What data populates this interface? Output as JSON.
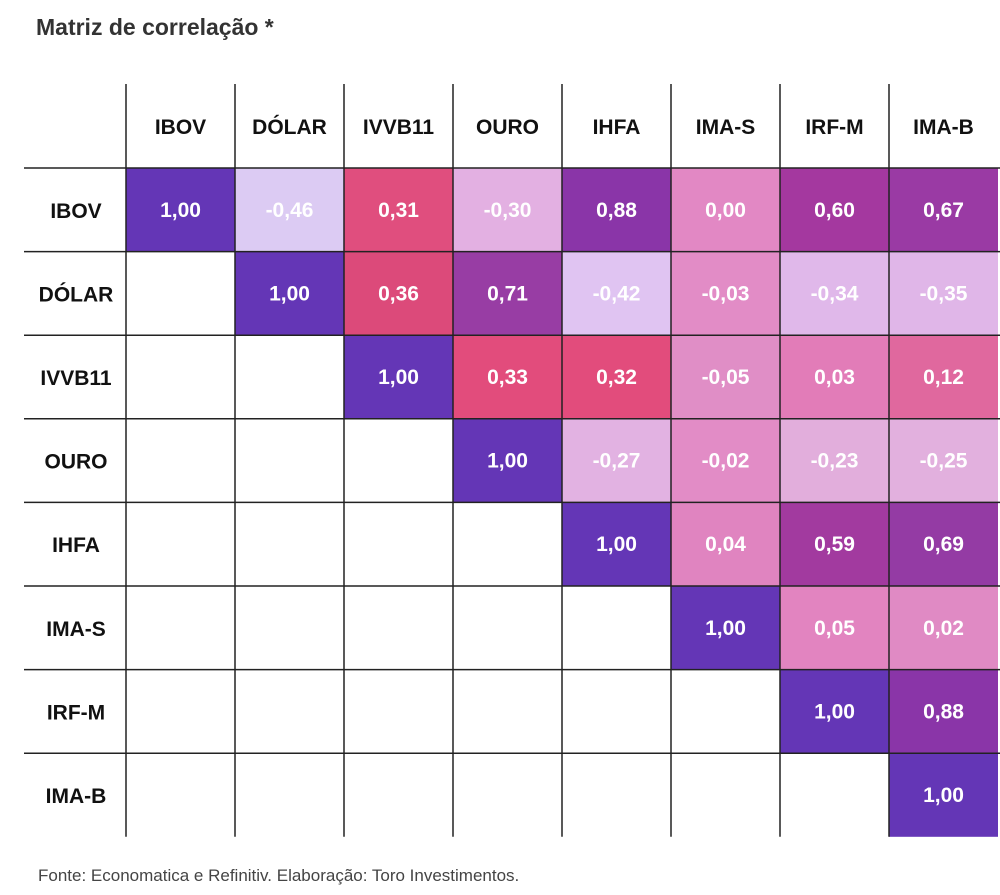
{
  "page": {
    "title": "Matriz de correlação *",
    "source": "Fonte: Economatica e Refinitiv. Elaboração: Toro Investimentos."
  },
  "colors": {
    "diagonal": "#6a37b5",
    "grid_line": "#222222",
    "text_light": "#ffffff"
  },
  "chart_data": {
    "type": "heatmap",
    "title": "Matriz de correlação *",
    "labels": [
      "IBOV",
      "DÓLAR",
      "IVVB11",
      "OURO",
      "IHFA",
      "IMA-S",
      "IRF-M",
      "IMA-B"
    ],
    "matrix_upper": [
      [
        "1,00",
        "-0,46",
        "0,31",
        "-0,30",
        "0,88",
        "0,00",
        "0,60",
        "0,67"
      ],
      [
        null,
        "1,00",
        "0,36",
        "0,71",
        "-0,42",
        "-0,03",
        "-0,34",
        "-0,35"
      ],
      [
        null,
        null,
        "1,00",
        "0,33",
        "0,32",
        "-0,05",
        "0,03",
        "0,12"
      ],
      [
        null,
        null,
        null,
        "1,00",
        "-0,27",
        "-0,02",
        "-0,23",
        "-0,25"
      ],
      [
        null,
        null,
        null,
        null,
        "1,00",
        "0,04",
        "0,59",
        "0,69"
      ],
      [
        null,
        null,
        null,
        null,
        null,
        "1,00",
        "0,05",
        "0,02"
      ],
      [
        null,
        null,
        null,
        null,
        null,
        null,
        "1,00",
        "0,88"
      ],
      [
        null,
        null,
        null,
        null,
        null,
        null,
        null,
        "1,00"
      ]
    ],
    "cell_colors": [
      [
        "#6436b6",
        "#dccbf3",
        "#e04e7e",
        "#e3b0e2",
        "#8a35a8",
        "#e288c4",
        "#a4389f",
        "#9a3aa4"
      ],
      [
        null,
        "#6436b6",
        "#dc4a7a",
        "#983da4",
        "#e0c4f2",
        "#e28cc6",
        "#e0b8ea",
        "#e0b6e8"
      ],
      [
        null,
        null,
        "#6436b6",
        "#e24c7c",
        "#e24c7c",
        "#e08ec6",
        "#e27cb8",
        "#e0689e"
      ],
      [
        null,
        null,
        null,
        "#6436b6",
        "#e2b2e2",
        "#e28cc6",
        "#e2aedc",
        "#e2b0de"
      ],
      [
        null,
        null,
        null,
        null,
        "#6436b6",
        "#e084c0",
        "#a23a9f",
        "#943ba4"
      ],
      [
        null,
        null,
        null,
        null,
        null,
        "#6436b6",
        "#e284c0",
        "#e08ac4"
      ],
      [
        null,
        null,
        null,
        null,
        null,
        null,
        "#6436b6",
        "#8a35a8"
      ],
      [
        null,
        null,
        null,
        null,
        null,
        null,
        null,
        "#6436b6"
      ]
    ]
  }
}
